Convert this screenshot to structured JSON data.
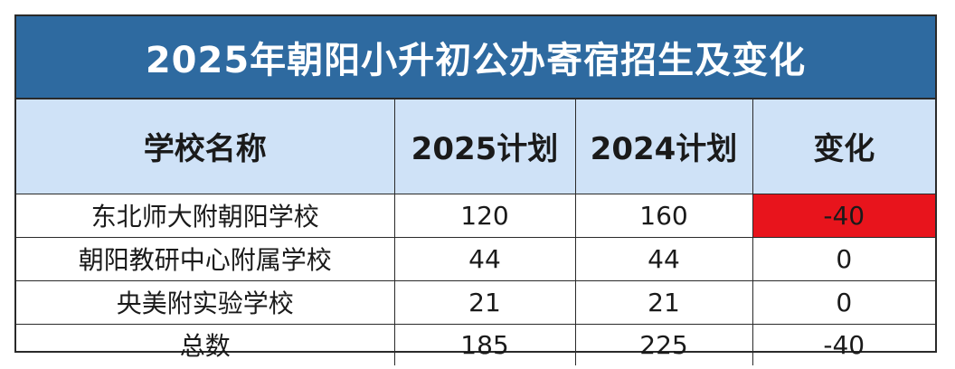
{
  "title": "2025年朝阳小升初公办寄宿招生及变化",
  "table": {
    "headers": [
      "学校名称",
      "2025计划",
      "2024计划",
      "变化"
    ],
    "rows": [
      {
        "school": "东北师大附朝阳学校",
        "plan_2025": "120",
        "plan_2024": "160",
        "change": "-40",
        "change_highlight": "#e8141c"
      },
      {
        "school": "朝阳教研中心附属学校",
        "plan_2025": "44",
        "plan_2024": "44",
        "change": "0"
      },
      {
        "school": "央美附实验学校",
        "plan_2025": "21",
        "plan_2024": "21",
        "change": "0"
      },
      {
        "school": "总数",
        "plan_2025": "185",
        "plan_2024": "225",
        "change": "-40"
      }
    ]
  },
  "colors": {
    "title_bg": "#2e6aa0",
    "header_bg": "#cfe2f7",
    "highlight": "#e8141c"
  }
}
